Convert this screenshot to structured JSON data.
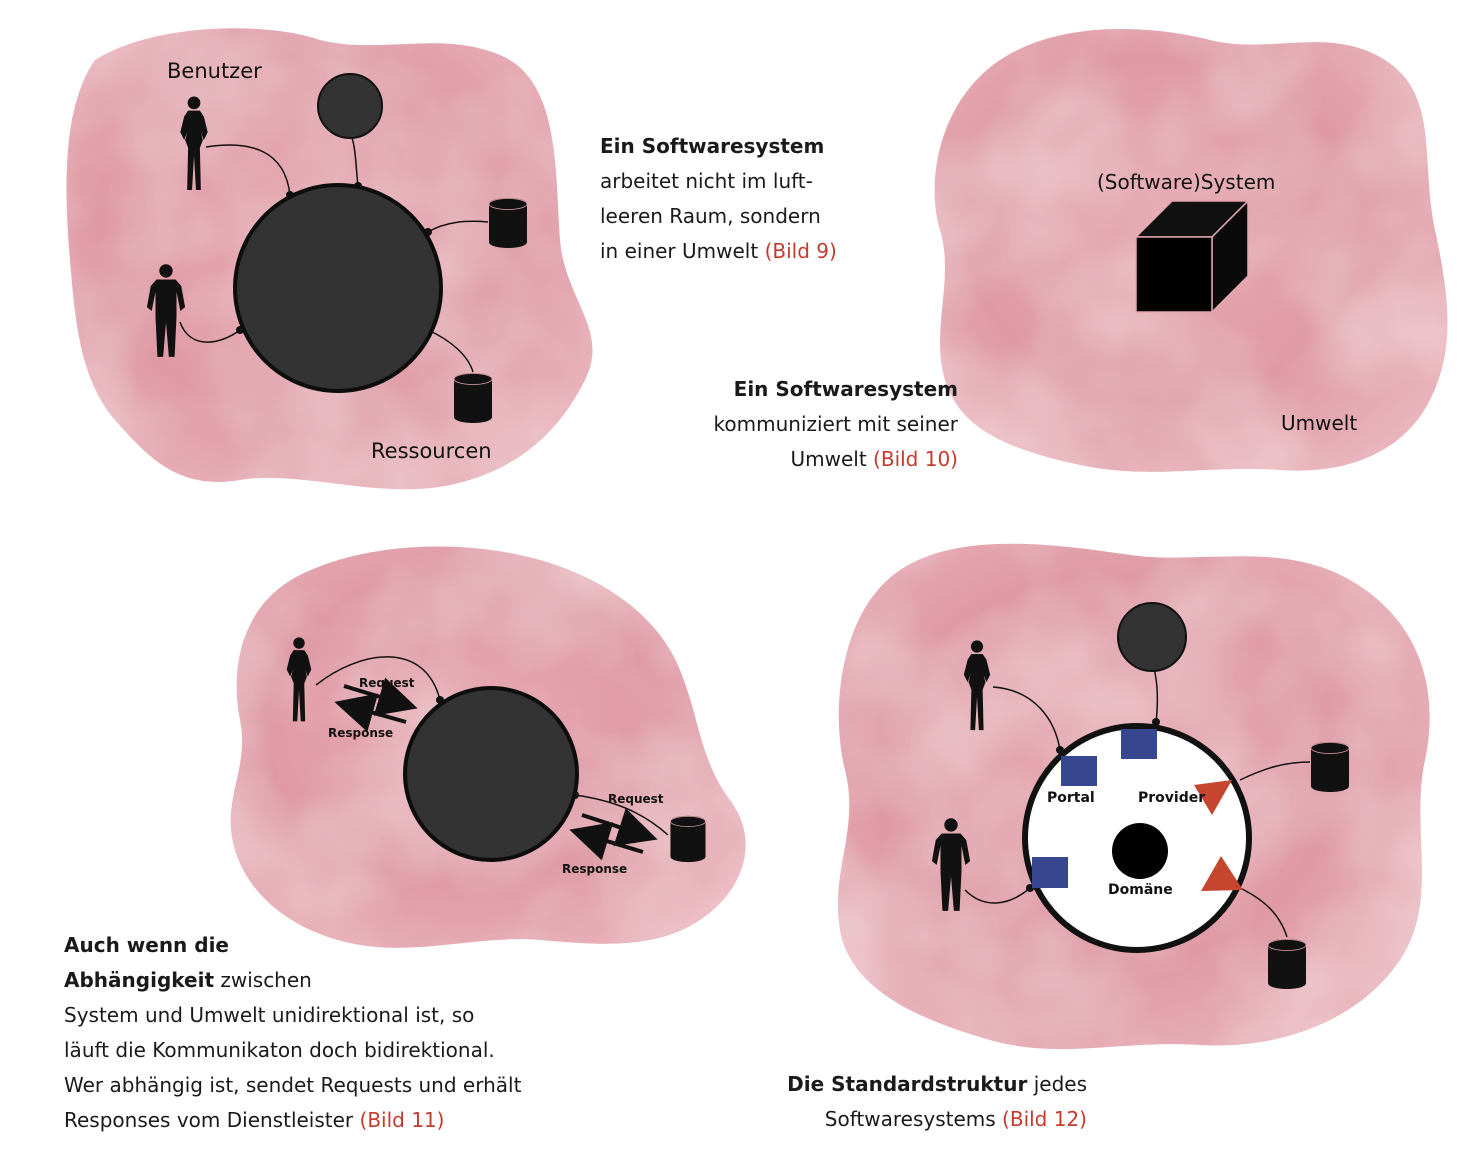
{
  "diagram1": {
    "label_users": "Benutzer",
    "label_resources": "Ressourcen"
  },
  "caption1": {
    "bold": "Ein Softwaresystem",
    "line2": "arbeitet nicht im luft-",
    "line3": "leeren Raum, sondern",
    "line4": "in einer Umwelt",
    "ref": "(Bild 9)"
  },
  "diagram2": {
    "label_system": "(Software)System",
    "label_environment": "Umwelt"
  },
  "caption2": {
    "bold": "Ein Softwaresystem",
    "line2": "kommuniziert mit seiner",
    "line3": "Umwelt",
    "ref": "(Bild 10)"
  },
  "diagram3": {
    "label_request_top": "Request",
    "label_response_top": "Response",
    "label_request_bottom": "Request",
    "label_response_bottom": "Response"
  },
  "caption3": {
    "bold1": "Auch wenn die",
    "bold2": "Abhängigkeit",
    "line2_rest": " zwischen",
    "line3": "System und Umwelt unidirektional ist, so",
    "line4": "läuft die Kommunikaton doch bidirektional.",
    "line5": "Wer abhängig ist, sendet Requests und erhält",
    "line6": "Responses vom Dienstleister",
    "ref": "(Bild 11)"
  },
  "diagram4": {
    "label_portal": "Portal",
    "label_provider": "Provider",
    "label_domain": "Domäne"
  },
  "caption4": {
    "bold": "Die Standardstruktur",
    "line1_rest": " jedes",
    "line2": "Softwaresystems",
    "ref": "(Bild 12)"
  },
  "colors": {
    "blob": "#e3a3ad",
    "blob_light": "#f1cfd4",
    "system_fill": "#333333",
    "portal_blue": "#37478f",
    "provider_red": "#c5452f",
    "ref_red": "#c43b2c"
  }
}
